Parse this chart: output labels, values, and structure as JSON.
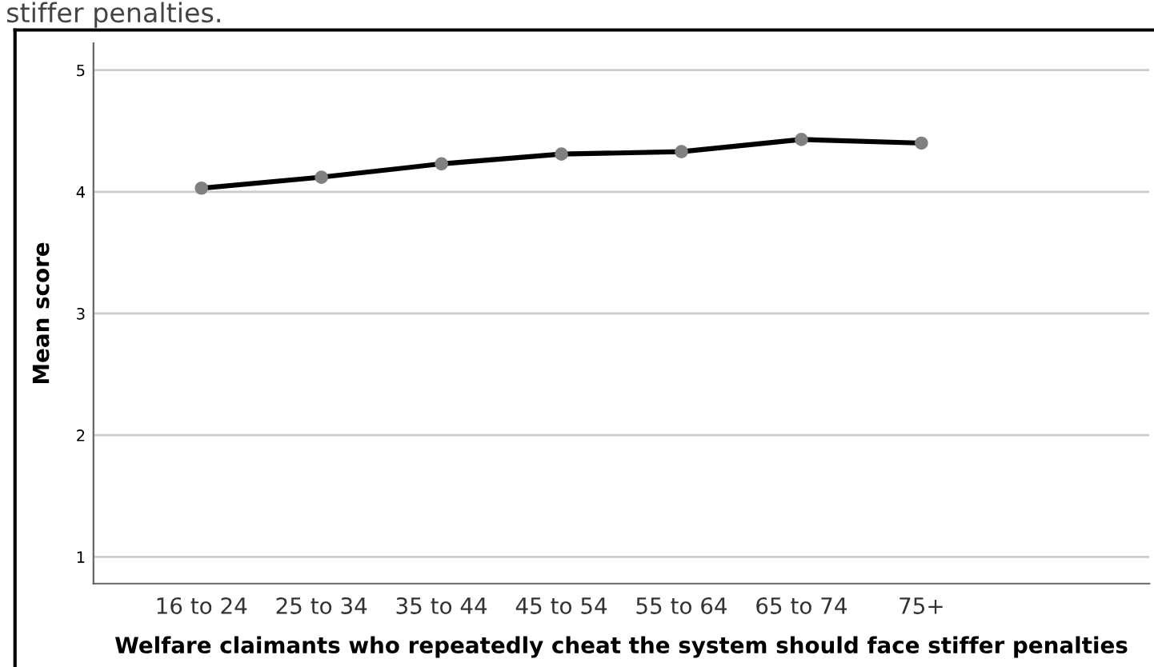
{
  "chart_data": {
    "type": "line",
    "title": "stiffer penalties.",
    "xlabel": "Welfare claimants who repeatedly cheat the system should face stiffer penalties",
    "ylabel": "Mean score",
    "categories": [
      "16 to 24",
      "25 to 34",
      "35 to 44",
      "45 to 54",
      "55 to 64",
      "65 to 74",
      "75+"
    ],
    "series": [
      {
        "color": "#000000",
        "colors": [
          "#808080",
          "#808080",
          "#808080",
          "#808080",
          "#808080",
          "#808080",
          "#808080"
        ],
        "values": [
          4.03,
          4.12,
          4.23,
          4.31,
          4.33,
          4.43,
          4.4
        ]
      }
    ],
    "ylim": [
      0.78,
      5.22
    ],
    "yticks": [
      1,
      2,
      3,
      4,
      5
    ],
    "grid": "y",
    "marker": "circle",
    "line_style": "solid",
    "legend": false
  }
}
